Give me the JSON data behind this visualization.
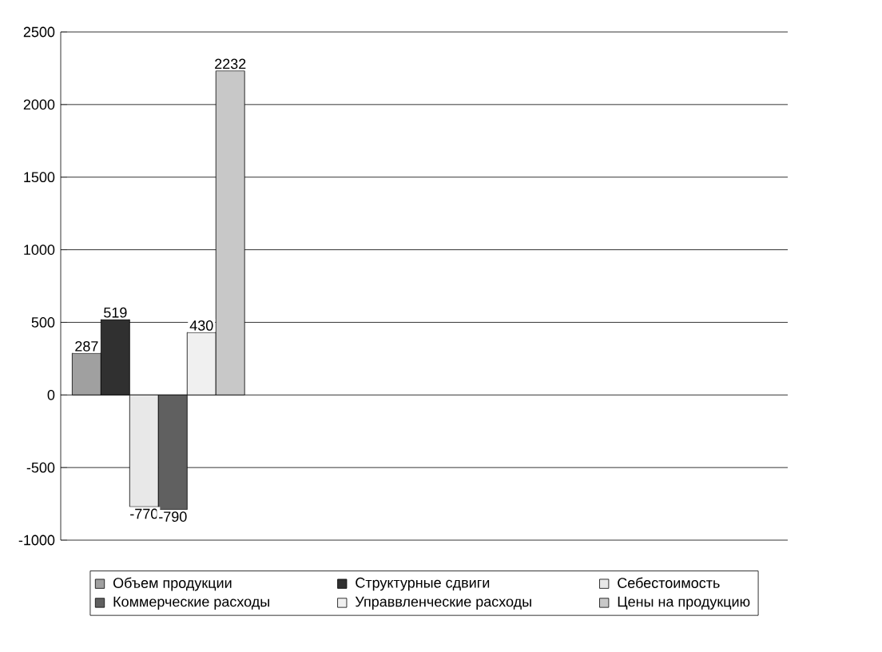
{
  "chart_data": {
    "type": "bar",
    "categories": [
      null
    ],
    "series": [
      {
        "name": "Объем продукции",
        "color": "#a0a0a0",
        "values": [
          287
        ]
      },
      {
        "name": "Структурные сдвиги",
        "color": "#303030",
        "values": [
          519
        ]
      },
      {
        "name": "Себестоимость",
        "color": "#e8e8e8",
        "values": [
          -770
        ]
      },
      {
        "name": "Коммерческие расходы",
        "color": "#606060",
        "values": [
          -790
        ]
      },
      {
        "name": "Управвленческие расходы",
        "color": "#f0f0f0",
        "values": [
          430
        ]
      },
      {
        "name": "Цены на продукцию",
        "color": "#c8c8c8",
        "values": [
          2232
        ]
      }
    ],
    "ylim": [
      -1000,
      2500
    ],
    "yticks": [
      -1000,
      -500,
      0,
      500,
      1000,
      1500,
      2000,
      2500
    ],
    "grid": "y",
    "legend": "bottom",
    "data_labels": true,
    "tick_labels": "y"
  }
}
